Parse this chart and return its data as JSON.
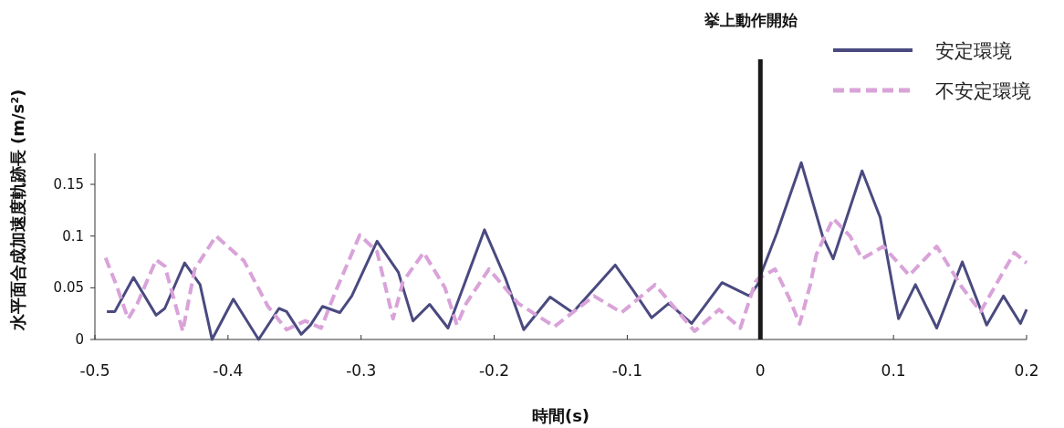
{
  "chart_data": {
    "type": "line",
    "xlabel": "時間(s)",
    "ylabel": "水平面合成加速度軌跡長 (m/s²)",
    "xlim": [
      -0.5,
      0.2
    ],
    "xticks": [
      -0.5,
      -0.4,
      -0.3,
      -0.2,
      -0.1,
      0,
      0.1,
      0.2
    ],
    "ylim": [
      0,
      0.18
    ],
    "yticks": [
      0,
      0.05,
      0.1,
      0.15
    ],
    "grid": false,
    "legend": "top right",
    "marker": "none",
    "ref_lines": [
      {
        "axis": "x",
        "value": 0,
        "label": "挙上動作開始",
        "color": "#1a1a1a"
      }
    ],
    "series": [
      {
        "name": "安定環境",
        "color": "#4a4a80",
        "line_style": "solid",
        "x": [
          -0.491,
          -0.485,
          -0.471,
          -0.454,
          -0.4475,
          -0.4326,
          -0.421,
          -0.412,
          -0.396,
          -0.377,
          -0.3617,
          -0.356,
          -0.345,
          -0.338,
          -0.329,
          -0.316,
          -0.307,
          -0.288,
          -0.272,
          -0.261,
          -0.2485,
          -0.2347,
          -0.2073,
          -0.1915,
          -0.1778,
          -0.158,
          -0.141,
          -0.1091,
          -0.0954,
          -0.0817,
          -0.0688,
          -0.0517,
          -0.0288,
          -0.0082,
          0,
          0.001,
          0.0124,
          0.0307,
          0.0467,
          0.0547,
          0.0764,
          0.09,
          0.1038,
          0.1165,
          0.1325,
          0.1517,
          0.17,
          0.1826,
          0.1954,
          0.2
        ],
        "values": [
          0.027,
          0.027,
          0.06,
          0.0235,
          0.03,
          0.074,
          0.053,
          0,
          0.039,
          0,
          0.03,
          0.027,
          0.005,
          0.014,
          0.032,
          0.026,
          0.042,
          0.095,
          0.065,
          0.018,
          0.034,
          0.011,
          0.106,
          0.059,
          0.0095,
          0.041,
          0.026,
          0.072,
          0.047,
          0.021,
          0.035,
          0.0155,
          0.055,
          0.042,
          0.057,
          0.065,
          0.103,
          0.171,
          0.1,
          0.078,
          0.163,
          0.118,
          0.02,
          0.053,
          0.011,
          0.075,
          0.014,
          0.042,
          0.0155,
          0.029
        ]
      },
      {
        "name": "不安定環境",
        "color": "#d9a3d9",
        "line_style": "dashed",
        "x": [
          -0.492,
          -0.484,
          -0.475,
          -0.468,
          -0.454,
          -0.4475,
          -0.434,
          -0.425,
          -0.409,
          -0.388,
          -0.37,
          -0.356,
          -0.342,
          -0.33,
          -0.319,
          -0.301,
          -0.288,
          -0.276,
          -0.2685,
          -0.253,
          -0.237,
          -0.228,
          -0.221,
          -0.2039,
          -0.182,
          -0.1547,
          -0.125,
          -0.1043,
          -0.0791,
          -0.0494,
          -0.031,
          -0.0151,
          -0.0036,
          -0.0014,
          0.011,
          0.0213,
          0.0295,
          0.0375,
          0.042,
          0.0547,
          0.0673,
          0.0764,
          0.0924,
          0.1119,
          0.1325,
          0.1517,
          0.1654,
          0.1908,
          0.2
        ],
        "values": [
          0.079,
          0.053,
          0.02,
          0.035,
          0.077,
          0.071,
          0.008,
          0.068,
          0.1,
          0.076,
          0.032,
          0.0095,
          0.018,
          0.011,
          0.047,
          0.101,
          0.085,
          0.02,
          0.056,
          0.084,
          0.05,
          0.014,
          0.035,
          0.068,
          0.035,
          0.0125,
          0.042,
          0.026,
          0.053,
          0.008,
          0.029,
          0.011,
          0.056,
          0.059,
          0.068,
          0.041,
          0.015,
          0.053,
          0.082,
          0.117,
          0.1,
          0.078,
          0.09,
          0.062,
          0.09,
          0.05,
          0.027,
          0.084,
          0.074
        ]
      }
    ]
  }
}
